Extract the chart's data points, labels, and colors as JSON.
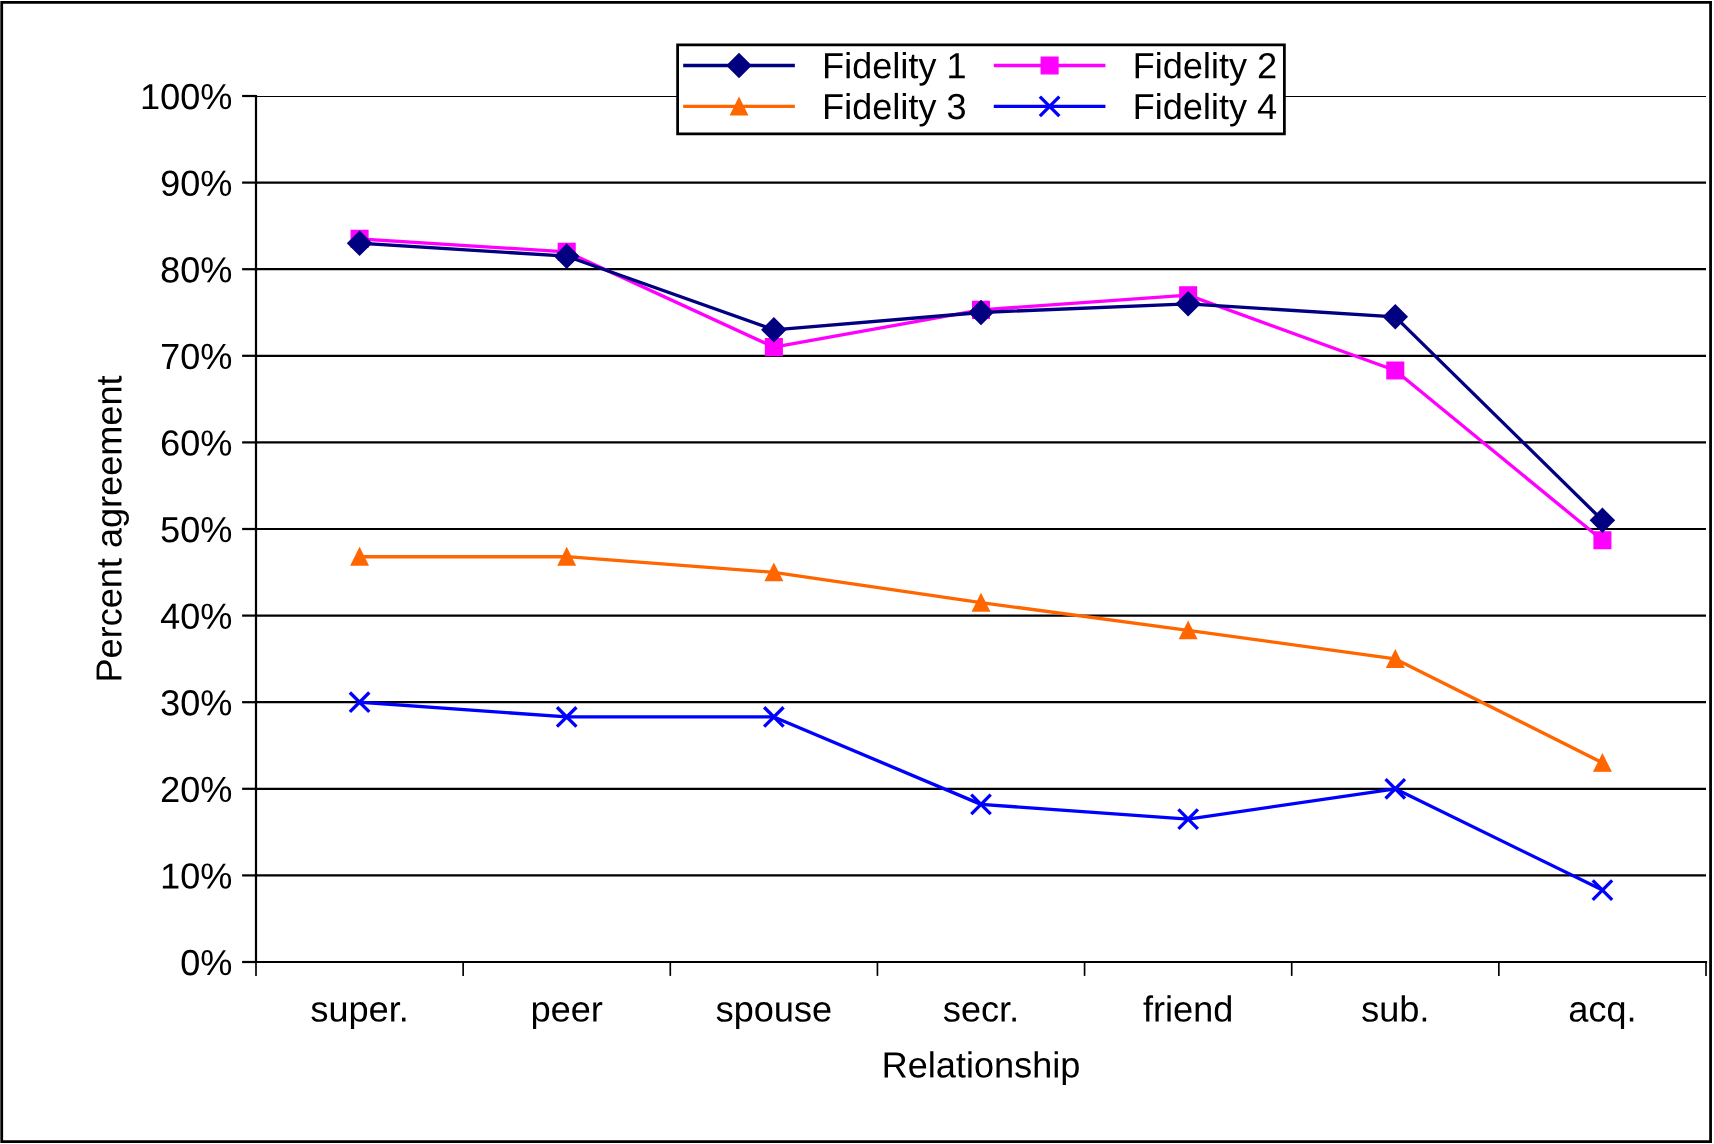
{
  "chart_data": {
    "type": "line",
    "xlabel": "Relationship",
    "ylabel": "Percent agreement",
    "categories": [
      "super.",
      "peer",
      "spouse",
      "secr.",
      "friend",
      "sub.",
      "acq."
    ],
    "series": [
      {
        "name": "Fidelity 1",
        "color": "#000080",
        "marker": "diamond",
        "values": [
          83,
          81.5,
          73,
          75,
          76,
          74.5,
          51
        ]
      },
      {
        "name": "Fidelity 2",
        "color": "#ff00ff",
        "marker": "square",
        "values": [
          83.5,
          82,
          71,
          75.3,
          77,
          68.3,
          48.7
        ]
      },
      {
        "name": "Fidelity 3",
        "color": "#ff6600",
        "marker": "triangle",
        "values": [
          46.8,
          46.8,
          45,
          41.5,
          38.3,
          35,
          23
        ]
      },
      {
        "name": "Fidelity 4",
        "color": "#0000ff",
        "marker": "cross",
        "values": [
          30,
          28.3,
          28.3,
          18.2,
          16.5,
          20,
          8.3
        ]
      }
    ],
    "ylim": [
      0,
      100
    ],
    "yticks": [
      {
        "value": 0,
        "label": "0%"
      },
      {
        "value": 10,
        "label": "10%"
      },
      {
        "value": 20,
        "label": "20%"
      },
      {
        "value": 30,
        "label": "30%"
      },
      {
        "value": 40,
        "label": "40%"
      },
      {
        "value": 50,
        "label": "50%"
      },
      {
        "value": 60,
        "label": "60%"
      },
      {
        "value": 70,
        "label": "70%"
      },
      {
        "value": 80,
        "label": "80%"
      },
      {
        "value": 90,
        "label": "90%"
      },
      {
        "value": 100,
        "label": "100%"
      }
    ],
    "grid": "y",
    "legend": "top",
    "line_style": "solid"
  }
}
